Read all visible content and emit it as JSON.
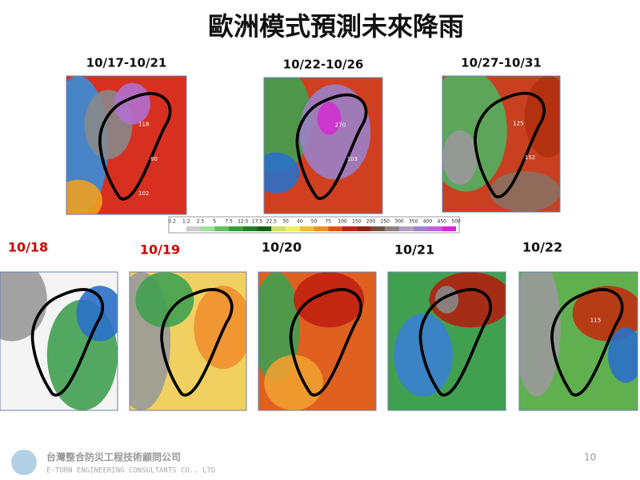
{
  "header": {
    "title": "歐洲模式預測未來降雨"
  },
  "periods": [
    {
      "label": "10/17-10/21",
      "notes": [
        "118",
        "80",
        "102"
      ]
    },
    {
      "label": "10/22-10/26",
      "notes": [
        "270",
        "103"
      ]
    },
    {
      "label": "10/27-10/31",
      "notes": [
        "125",
        "152"
      ]
    }
  ],
  "colorbar": {
    "labels": [
      0.2,
      1.2,
      2.5,
      5,
      7.5,
      12.5,
      17.5,
      22.5,
      30,
      40,
      50,
      75,
      100,
      150,
      200,
      250,
      300,
      350,
      400,
      450,
      500
    ]
  },
  "days": [
    {
      "label": "10/18"
    },
    {
      "label": "10/19"
    },
    {
      "label": "10/20"
    },
    {
      "label": "10/21"
    },
    {
      "label": "10/22",
      "notes": [
        "115"
      ]
    }
  ],
  "footer": {
    "company": "台灣整合防災工程技術顧問公司",
    "company_en": "E-TURN ENGINEERING CONSULTANTS CO., LTD",
    "page": "10"
  }
}
